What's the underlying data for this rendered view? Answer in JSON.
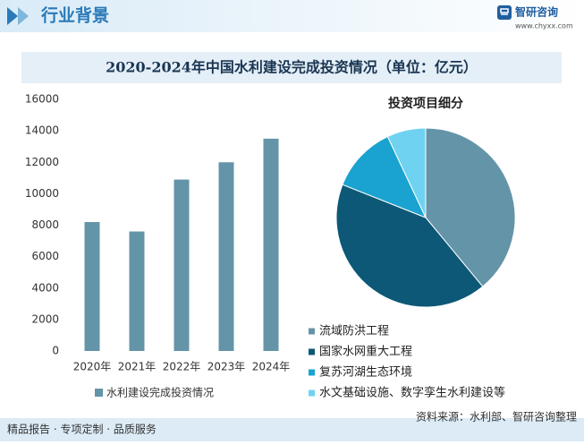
{
  "header": {
    "section": "行业背景",
    "brand": "智研咨询",
    "site": "www.chyxx.com"
  },
  "chart_data": [
    {
      "type": "bar",
      "title": "2020-2024年中国水利建设完成投资情况（单位：亿元）",
      "categories": [
        "2020年",
        "2021年",
        "2022年",
        "2023年",
        "2024年"
      ],
      "series": [
        {
          "name": "水利建设完成投资情况",
          "color": "#6494a8",
          "values": [
            8200,
            7600,
            10900,
            12000,
            13500
          ]
        }
      ],
      "ylim": [
        0,
        16000
      ],
      "yticks": [
        0,
        2000,
        4000,
        6000,
        8000,
        10000,
        12000,
        14000,
        16000
      ],
      "grid": false
    },
    {
      "type": "pie",
      "title": "投资项目细分",
      "categories": [
        "流域防洪工程",
        "国家水网重大工程",
        "复苏河湖生态环境",
        "水文基础设施、数字孪生水利建设等"
      ],
      "values": [
        39,
        42,
        12,
        7
      ],
      "colors": [
        "#6494a8",
        "#0d5877",
        "#1aa3d0",
        "#6fd2f0"
      ]
    }
  ],
  "footer": {
    "left": "精品报告 · 专项定制 · 品质服务",
    "source": "资料来源：水利部、智研咨询整理"
  }
}
